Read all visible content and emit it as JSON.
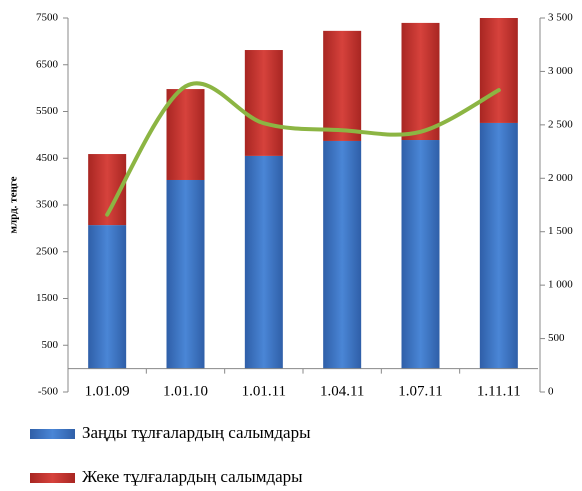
{
  "chart_data": {
    "type": "bar",
    "y_label": "млрд. теңге",
    "categories": [
      "1.01.09",
      "1.01.10",
      "1.01.11",
      "1.04.11",
      "1.07.11",
      "1.11.11"
    ],
    "series": [
      {
        "name": "Заңды тұлғалардың салымдары",
        "color": "#3b74c6",
        "values": [
          3070,
          4035,
          4550,
          4870,
          4890,
          5255
        ]
      },
      {
        "name": "Жеке тұлғалардың салымдары",
        "color": "#c7332f",
        "values": [
          1520,
          1945,
          2265,
          2355,
          2505,
          2245
        ]
      },
      {
        "type": "line",
        "axis": "y2",
        "color": "#8cb543",
        "values": [
          1660,
          2860,
          2515,
          2450,
          2435,
          2825
        ]
      }
    ],
    "stacked": true,
    "ylim": [
      -500,
      7500
    ],
    "yticks": [
      -500,
      500,
      1500,
      2500,
      3500,
      4500,
      5500,
      6500,
      7500
    ],
    "y2lim": [
      0,
      3500
    ],
    "y2ticks": [
      0,
      500,
      {
        "value": 1000,
        "label": "1 000"
      },
      {
        "value": 1500,
        "label": "1 500"
      },
      {
        "value": 2000,
        "label": "2 000"
      },
      {
        "value": 2500,
        "label": "2 500"
      },
      {
        "value": 3000,
        "label": "3 000"
      },
      {
        "value": 3500,
        "label": "3 500"
      }
    ],
    "grid": false
  }
}
